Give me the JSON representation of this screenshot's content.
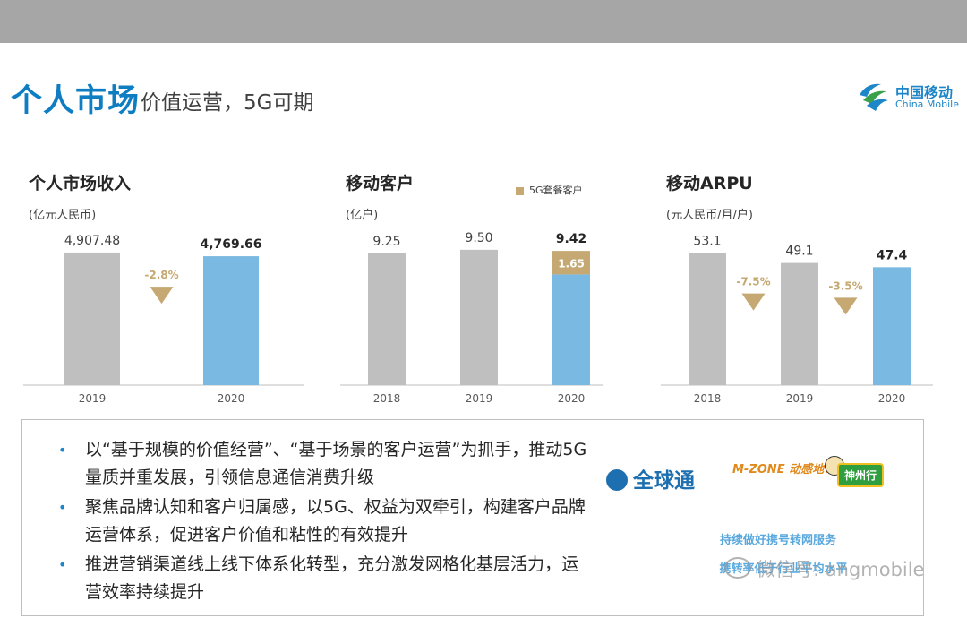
{
  "header": {
    "title_main": "个人市场",
    "title_sub": "价值运营，5G可期"
  },
  "logo": {
    "cn": "中国移动",
    "en": "China Mobile"
  },
  "colors": {
    "gray_bar": "#bfbfbf",
    "blue_bar": "#7ab9e2",
    "gold_bar": "#c5a872",
    "arrow": "#c5a872",
    "title_blue": "#0f7dc2"
  },
  "chart_data": [
    {
      "type": "bar",
      "title": "个人市场收入",
      "ylabel": "(亿元人民币)",
      "categories": [
        "2019",
        "2020"
      ],
      "values": [
        4907.48,
        4769.66
      ],
      "value_labels": [
        "4,907.48",
        "4,769.66"
      ],
      "ylim": [
        0,
        5800
      ],
      "changes": [
        {
          "from": 0,
          "to": 1,
          "label": "-2.8%"
        }
      ]
    },
    {
      "type": "bar",
      "title": "移动客户",
      "ylabel": "(亿户)",
      "legend": [
        "5G套餐客户"
      ],
      "categories": [
        "2018",
        "2019",
        "2020"
      ],
      "values": [
        9.25,
        9.5,
        9.42
      ],
      "value_labels": [
        "9.25",
        "9.50",
        "9.42"
      ],
      "series": [
        {
          "name": "5G套餐客户",
          "values": [
            0,
            0,
            1.65
          ],
          "labels": [
            "",
            "",
            "1.65"
          ]
        }
      ],
      "ylim": [
        0,
        11
      ]
    },
    {
      "type": "bar",
      "title": "移动ARPU",
      "ylabel": "(元人民币/月/户)",
      "categories": [
        "2018",
        "2019",
        "2020"
      ],
      "values": [
        53.1,
        49.1,
        47.4
      ],
      "value_labels": [
        "53.1",
        "49.1",
        "47.4"
      ],
      "ylim": [
        0,
        63
      ],
      "changes": [
        {
          "from": 0,
          "to": 1,
          "label": "-7.5%"
        },
        {
          "from": 1,
          "to": 2,
          "label": "-3.5%"
        }
      ]
    }
  ],
  "bullets": [
    "以“基于规模的价值经营”、“基于场景的客户运营”为抓手，推动5G量质并重发展，引领信息通信消费升级",
    "聚焦品牌认知和客户归属感，以5G、权益为双牵引，构建客户品牌运营体系，促进客户价值和粘性的有效提升",
    "推进营销渠道线上线下体系化转型，充分激发网格化基层活力，运营效率持续提升"
  ],
  "brands": {
    "qqt": "全球通",
    "mzone": "M-ZONE 动感地带",
    "szx": "神州行"
  },
  "service": {
    "line1": "持续做好携号转网服务",
    "line2": "携转率低于行业平均水平"
  },
  "watermark": "微信号: angmobile"
}
